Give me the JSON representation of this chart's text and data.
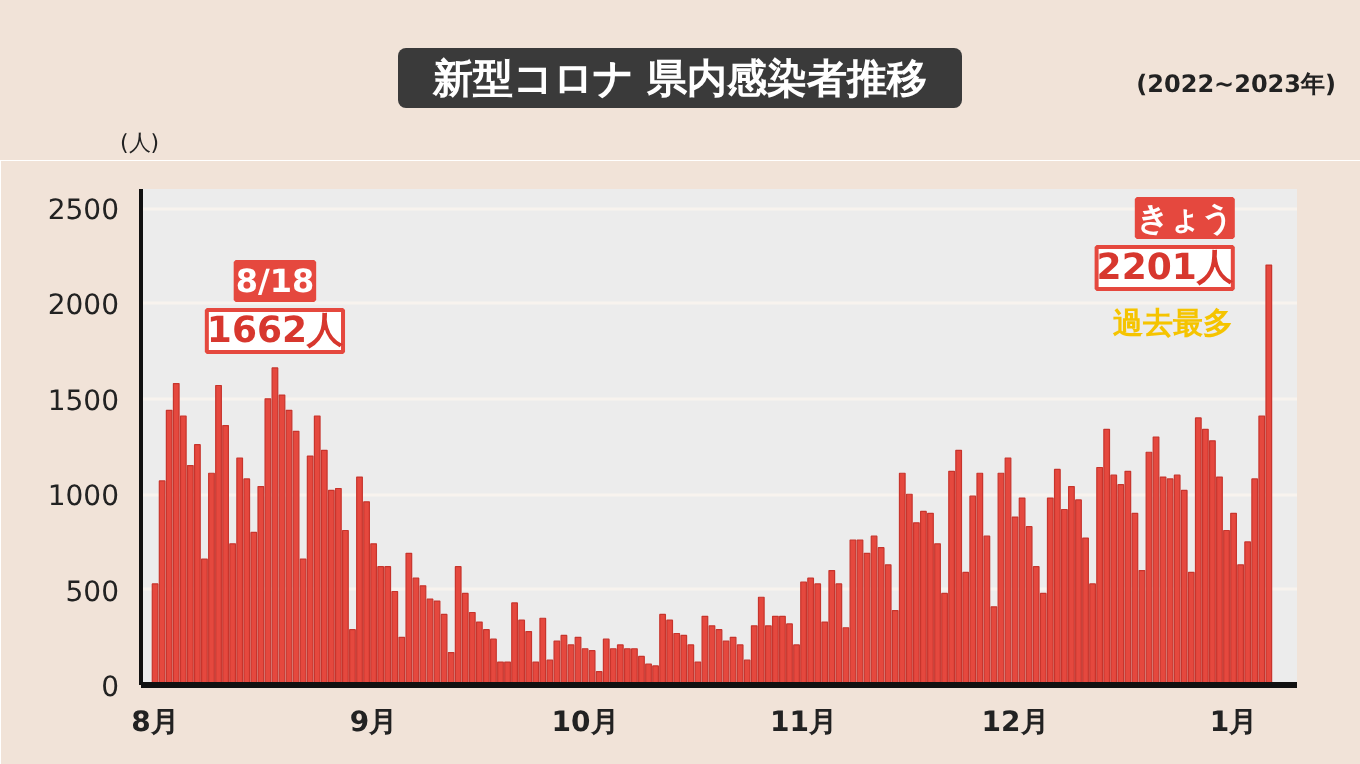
{
  "chart_data": {
    "type": "bar",
    "title": "新型コロナ 県内感染者推移",
    "subtitle": "(2022~2023年)",
    "ylabel": "(人)",
    "x": [
      "2022-08-01",
      "2022-08-02",
      "2022-08-03",
      "2022-08-04",
      "2022-08-05",
      "2022-08-06",
      "2022-08-07",
      "2022-08-08",
      "2022-08-09",
      "2022-08-10",
      "2022-08-11",
      "2022-08-12",
      "2022-08-13",
      "2022-08-14",
      "2022-08-15",
      "2022-08-16",
      "2022-08-17",
      "2022-08-18",
      "2022-08-19",
      "2022-08-20",
      "2022-08-21",
      "2022-08-22",
      "2022-08-23",
      "2022-08-24",
      "2022-08-25",
      "2022-08-26",
      "2022-08-27",
      "2022-08-28",
      "2022-08-29",
      "2022-08-30",
      "2022-08-31",
      "2022-09-01",
      "2022-09-02",
      "2022-09-03",
      "2022-09-04",
      "2022-09-05",
      "2022-09-06",
      "2022-09-07",
      "2022-09-08",
      "2022-09-09",
      "2022-09-10",
      "2022-09-11",
      "2022-09-12",
      "2022-09-13",
      "2022-09-14",
      "2022-09-15",
      "2022-09-16",
      "2022-09-17",
      "2022-09-18",
      "2022-09-19",
      "2022-09-20",
      "2022-09-21",
      "2022-09-22",
      "2022-09-23",
      "2022-09-24",
      "2022-09-25",
      "2022-09-26",
      "2022-09-27",
      "2022-09-28",
      "2022-09-29",
      "2022-09-30",
      "2022-10-01",
      "2022-10-02",
      "2022-10-03",
      "2022-10-04",
      "2022-10-05",
      "2022-10-06",
      "2022-10-07",
      "2022-10-08",
      "2022-10-09",
      "2022-10-10",
      "2022-10-11",
      "2022-10-12",
      "2022-10-13",
      "2022-10-14",
      "2022-10-15",
      "2022-10-16",
      "2022-10-17",
      "2022-10-18",
      "2022-10-19",
      "2022-10-20",
      "2022-10-21",
      "2022-10-22",
      "2022-10-23",
      "2022-10-24",
      "2022-10-25",
      "2022-10-26",
      "2022-10-27",
      "2022-10-28",
      "2022-10-29",
      "2022-10-30",
      "2022-10-31",
      "2022-11-01",
      "2022-11-02",
      "2022-11-03",
      "2022-11-04",
      "2022-11-05",
      "2022-11-06",
      "2022-11-07",
      "2022-11-08",
      "2022-11-09",
      "2022-11-10",
      "2022-11-11",
      "2022-11-12",
      "2022-11-13",
      "2022-11-14",
      "2022-11-15",
      "2022-11-16",
      "2022-11-17",
      "2022-11-18",
      "2022-11-19",
      "2022-11-20",
      "2022-11-21",
      "2022-11-22",
      "2022-11-23",
      "2022-11-24",
      "2022-11-25",
      "2022-11-26",
      "2022-11-27",
      "2022-11-28",
      "2022-11-29",
      "2022-11-30",
      "2022-12-01",
      "2022-12-02",
      "2022-12-03",
      "2022-12-04",
      "2022-12-05",
      "2022-12-06",
      "2022-12-07",
      "2022-12-08",
      "2022-12-09",
      "2022-12-10",
      "2022-12-11",
      "2022-12-12",
      "2022-12-13",
      "2022-12-14",
      "2022-12-15",
      "2022-12-16",
      "2022-12-17",
      "2022-12-18",
      "2022-12-19",
      "2022-12-20",
      "2022-12-21",
      "2022-12-22",
      "2022-12-23",
      "2022-12-24",
      "2022-12-25",
      "2022-12-26",
      "2022-12-27",
      "2022-12-28",
      "2022-12-29",
      "2022-12-30",
      "2022-12-31",
      "2023-01-01",
      "2023-01-02",
      "2023-01-03",
      "2023-01-04",
      "2023-01-05",
      "2023-01-06"
    ],
    "series": [
      {
        "color": "#e5483e",
        "values": [
          530,
          1070,
          1440,
          1580,
          1410,
          1150,
          1260,
          660,
          1110,
          1570,
          1360,
          740,
          1190,
          1080,
          800,
          1040,
          1500,
          1662,
          1520,
          1440,
          1330,
          660,
          1200,
          1410,
          1230,
          1020,
          1030,
          810,
          290,
          1090,
          960,
          740,
          620,
          620,
          490,
          250,
          690,
          560,
          520,
          450,
          440,
          370,
          170,
          620,
          480,
          380,
          330,
          290,
          240,
          120,
          120,
          430,
          340,
          280,
          120,
          350,
          130,
          230,
          260,
          210,
          250,
          190,
          180,
          70,
          240,
          190,
          210,
          190,
          190,
          150,
          110,
          100,
          370,
          340,
          270,
          260,
          210,
          120,
          360,
          310,
          290,
          230,
          250,
          210,
          130,
          310,
          460,
          310,
          360,
          360,
          320,
          210,
          540,
          560,
          530,
          330,
          600,
          530,
          300,
          760,
          760,
          690,
          780,
          720,
          630,
          390,
          1110,
          1000,
          850,
          910,
          900,
          740,
          480,
          1120,
          1230,
          590,
          990,
          1110,
          780,
          410,
          1110,
          1190,
          880,
          980,
          830,
          620,
          480,
          980,
          1130,
          920,
          1040,
          970,
          770,
          530,
          1140,
          1340,
          1100,
          1050,
          1120,
          900,
          600,
          1220,
          1300,
          1090,
          1080,
          1100,
          1020,
          590,
          1400,
          1340,
          1280,
          1090,
          810,
          900,
          630,
          750,
          1080,
          1410,
          2201
        ]
      }
    ],
    "xlim": [
      "2022-07-30",
      "2023-01-10"
    ],
    "xticks": [
      {
        "value": "2022-08-01",
        "label": "8月"
      },
      {
        "value": "2022-09-01",
        "label": "9月"
      },
      {
        "value": "2022-10-01",
        "label": "10月"
      },
      {
        "value": "2022-11-01",
        "label": "11月"
      },
      {
        "value": "2022-12-01",
        "label": "12月"
      },
      {
        "value": "2023-01-01",
        "label": "1月"
      }
    ],
    "ylim": [
      0,
      2600
    ],
    "yticks": [
      0,
      500,
      1000,
      1500,
      2000,
      2500
    ],
    "grid": "y",
    "annotations": [
      "8/18",
      {
        "text": "1662人",
        "x": "2022-08-18",
        "y": 1662
      },
      "きょう",
      {
        "text": "2201人",
        "x": "2023-01-06",
        "y": 2201
      },
      "過去最多"
    ]
  }
}
